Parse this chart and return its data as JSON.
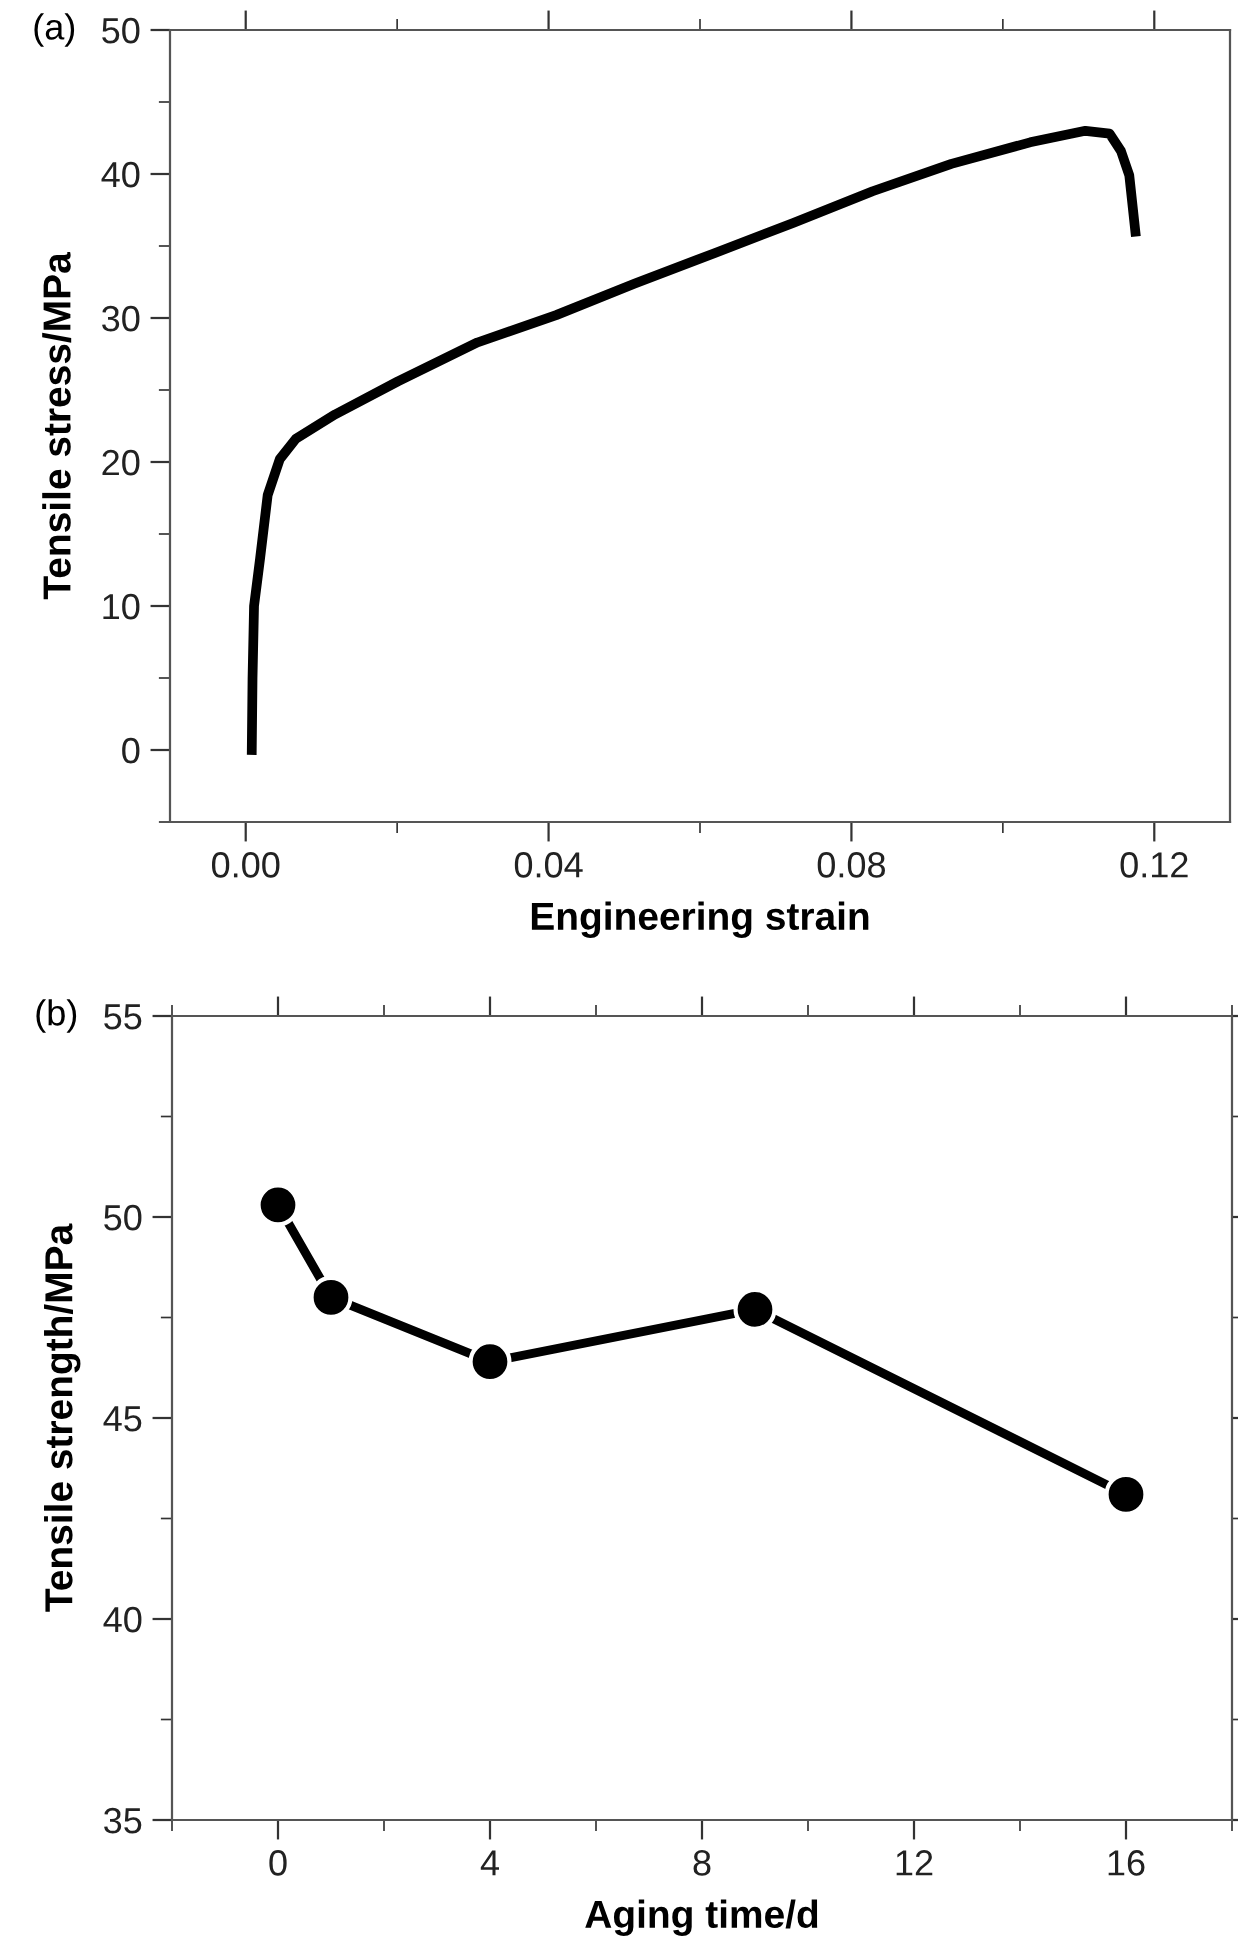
{
  "chart_data": [
    {
      "type": "line",
      "title": "(a)",
      "xlabel": "Engineering strain",
      "ylabel": "Tensile stress/MPa",
      "xlim": [
        -0.01,
        0.13
      ],
      "ylim": [
        -5,
        50
      ],
      "xticks": [
        {
          "value": 0,
          "label": "0.00"
        },
        0.04,
        0.08,
        0.12
      ],
      "yticks": [
        0,
        10,
        20,
        30,
        40,
        50
      ],
      "grid": false,
      "legend": false,
      "marker": "none",
      "line_style": "solid",
      "series": [
        {
          "color": "#000000",
          "x": [
            0.0008,
            0.0009,
            0.0011,
            0.0019,
            0.0029,
            0.0045,
            0.0066,
            0.0118,
            0.0201,
            0.0306,
            0.041,
            0.0514,
            0.0619,
            0.0723,
            0.0828,
            0.0932,
            0.1036,
            0.1109,
            0.1141,
            0.1156,
            0.1167,
            0.1175
          ],
          "values": [
            0,
            5,
            10,
            13.3,
            17.7,
            20.2,
            21.6,
            23.3,
            25.6,
            28.3,
            30.2,
            32.4,
            34.5,
            36.6,
            38.8,
            40.7,
            42.2,
            43.0,
            42.8,
            41.6,
            39.9,
            36.0
          ]
        }
      ]
    },
    {
      "type": "line",
      "title": "(b)",
      "xlabel": "Aging time/d",
      "ylabel": "Tensile strength/MPa",
      "xlim": [
        -2,
        18
      ],
      "ylim": [
        35,
        55
      ],
      "xticks": [
        0,
        4,
        8,
        12,
        16
      ],
      "yticks": [
        35,
        40,
        45,
        50,
        55
      ],
      "grid": false,
      "legend": false,
      "marker": "circle",
      "line_style": "solid",
      "series": [
        {
          "color": "#000000",
          "x": [
            0,
            1,
            4,
            9,
            16
          ],
          "values": [
            50.3,
            48.0,
            46.4,
            47.7,
            43.1
          ]
        }
      ]
    }
  ]
}
